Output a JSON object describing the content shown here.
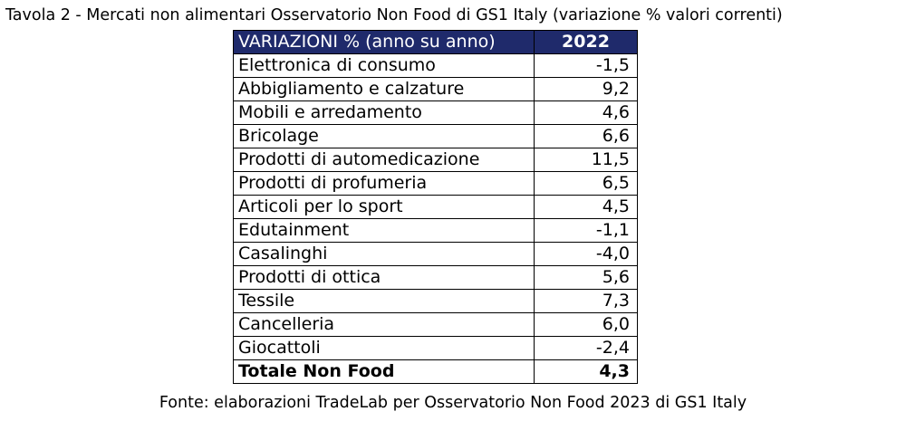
{
  "title": "Tavola 2 - Mercati non alimentari Osservatorio Non Food di GS1 Italy (variazione % valori correnti)",
  "table": {
    "header_category": "VARIAZIONI % (anno su anno)",
    "header_year": "2022",
    "header_bg_color": "#1f2a6b",
    "rows": [
      {
        "category": "Elettronica di consumo",
        "value": "-1,5"
      },
      {
        "category": "Abbigliamento e calzature",
        "value": "9,2"
      },
      {
        "category": "Mobili e arredamento",
        "value": "4,6"
      },
      {
        "category": "Bricolage",
        "value": "6,6"
      },
      {
        "category": "Prodotti di automedicazione",
        "value": "11,5"
      },
      {
        "category": "Prodotti di profumeria",
        "value": "6,5"
      },
      {
        "category": "Articoli per lo sport",
        "value": "4,5"
      },
      {
        "category": "Edutainment",
        "value": "-1,1"
      },
      {
        "category": "Casalinghi",
        "value": "-4,0"
      },
      {
        "category": "Prodotti di ottica",
        "value": "5,6"
      },
      {
        "category": "Tessile",
        "value": "7,3"
      },
      {
        "category": "Cancelleria",
        "value": "6,0"
      },
      {
        "category": "Giocattoli",
        "value": "-2,4"
      }
    ],
    "total": {
      "category": "Totale Non Food",
      "value": "4,3"
    }
  },
  "source": "Fonte: elaborazioni TradeLab per Osservatorio Non Food 2023 di GS1 Italy"
}
